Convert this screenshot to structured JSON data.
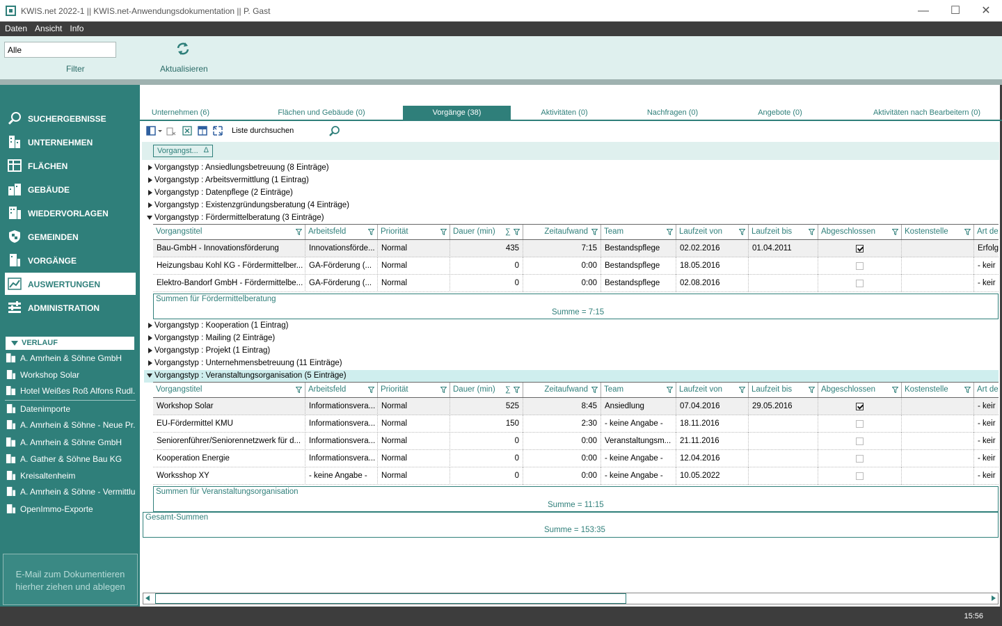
{
  "window": {
    "title": "KWIS.net 2022-1 || KWIS.net-Anwendungsdokumentation || P. Gast"
  },
  "menu": [
    "Daten",
    "Ansicht",
    "Info"
  ],
  "ribbon": {
    "filter_value": "Alle",
    "filter_label": "Filter",
    "refresh_label": "Aktualisieren"
  },
  "nav": [
    {
      "label": "SUCHERGEBNISSE",
      "icon": "search-icon"
    },
    {
      "label": "UNTERNEHMEN",
      "icon": "building-icon"
    },
    {
      "label": "FLÄCHEN",
      "icon": "area-icon"
    },
    {
      "label": "GEBÄUDE",
      "icon": "buildings-icon"
    },
    {
      "label": "WIEDERVORLAGEN",
      "icon": "resubmission-icon"
    },
    {
      "label": "GEMEINDEN",
      "icon": "shield-icon"
    },
    {
      "label": "VORGÄNGE",
      "icon": "process-icon"
    },
    {
      "label": "AUSWERTUNGEN",
      "icon": "chart-icon",
      "active": true
    },
    {
      "label": "ADMINISTRATION",
      "icon": "sliders-icon"
    }
  ],
  "verlauf": {
    "title": "VERLAUF",
    "items": [
      "A. Amrhein & Söhne GmbH",
      "Workshop Solar",
      "Hotel Weißes Roß Alfons Rudl...",
      "Datenimporte",
      "A. Amrhein & Söhne - Neue Pr...",
      "A. Amrhein & Söhne GmbH",
      "A. Gather & Söhne Bau KG",
      "Kreisaltenheim",
      "A. Amrhein & Söhne - Vermittlu...",
      "OpenImmo-Exporte"
    ]
  },
  "dropzone": {
    "line1": "E-Mail  zum Dokumentieren",
    "line2": "hierher ziehen und ablegen"
  },
  "tabs": [
    "Unternehmen (6)",
    "Flächen und Gebäude (0)",
    "Vorgänge (38)",
    "Aktivitäten (0)",
    "Nachfragen (0)",
    "Angebote (0)",
    "Aktivitäten nach Bearbeitern (0)"
  ],
  "active_tab": "Vorgänge (38)",
  "search_placeholder": "Liste durchsuchen",
  "group_chip": "Vorgangst...",
  "columns": [
    "Vorgangstitel",
    "Arbeitsfeld",
    "Priorität",
    "Dauer (min)",
    "Zeitaufwand",
    "Team",
    "Laufzeit von",
    "Laufzeit bis",
    "Abgeschlossen",
    "Kostenstelle",
    "Art de"
  ],
  "groups_top": [
    "Vorgangstyp : Ansiedlungsbetreuung (8 Einträge)",
    "Vorgangstyp : Arbeitsvermittlung (1 Eintrag)",
    "Vorgangstyp : Datenpflege (2 Einträge)",
    "Vorgangstyp : Existenzgründungsberatung (4 Einträge)"
  ],
  "group_foerder": {
    "title": "Vorgangstyp : Fördermittelberatung (3 Einträge)",
    "rows": [
      [
        "Bau-GmbH - Innovationsförderung",
        "Innovationsförde...",
        "Normal",
        "435",
        "7:15",
        "Bestandspflege",
        "02.02.2016",
        "01.04.2011",
        true,
        "",
        "Erfolg"
      ],
      [
        "Heizungsbau Kohl KG - Fördermittelber...",
        "GA-Förderung (...",
        "Normal",
        "0",
        "0:00",
        "Bestandspflege",
        "18.05.2016",
        "",
        false,
        "",
        "- keir"
      ],
      [
        "Elektro-Bandorf GmbH - Fördermittelbe...",
        "GA-Förderung (...",
        "Normal",
        "0",
        "0:00",
        "Bestandspflege",
        "02.08.2016",
        "",
        false,
        "",
        "- keir"
      ]
    ],
    "sum_title": "Summen für Fördermittelberatung",
    "sum_value": "Summe = 7:15"
  },
  "groups_mid": [
    "Vorgangstyp : Kooperation (1 Eintrag)",
    "Vorgangstyp : Mailing (2 Einträge)",
    "Vorgangstyp : Projekt (1 Eintrag)",
    "Vorgangstyp : Unternehmensbetreuung (11 Einträge)"
  ],
  "group_veranst": {
    "title": "Vorgangstyp : Veranstaltungsorganisation (5 Einträge)",
    "rows": [
      [
        "Workshop Solar",
        "Informationsvera...",
        "Normal",
        "525",
        "8:45",
        "Ansiedlung",
        "07.04.2016",
        "29.05.2016",
        true,
        "",
        "- keir"
      ],
      [
        "EU-Fördermittel KMU",
        "Informationsvera...",
        "Normal",
        "150",
        "2:30",
        "- keine Angabe -",
        "18.11.2016",
        "",
        false,
        "",
        "- keir"
      ],
      [
        "Seniorenführer/Seniorennetzwerk  für  d...",
        "Informationsvera...",
        "Normal",
        "0",
        "0:00",
        "Veranstaltungsm...",
        "21.11.2016",
        "",
        false,
        "",
        "- keir"
      ],
      [
        "Kooperation Energie",
        "Informationsvera...",
        "Normal",
        "0",
        "0:00",
        "- keine Angabe -",
        "12.04.2016",
        "",
        false,
        "",
        "- keir"
      ],
      [
        "Worksshop XY",
        "- keine Angabe -",
        "Normal",
        "0",
        "0:00",
        "- keine Angabe -",
        "10.05.2022",
        "",
        false,
        "",
        "- keir"
      ]
    ],
    "sum_title": "Summen für Veranstaltungsorganisation",
    "sum_value": "Summe = 11:15"
  },
  "gesamt": {
    "title": "Gesamt-Summen",
    "value": "Summe = 153:35"
  },
  "status": {
    "time": "15:56"
  }
}
